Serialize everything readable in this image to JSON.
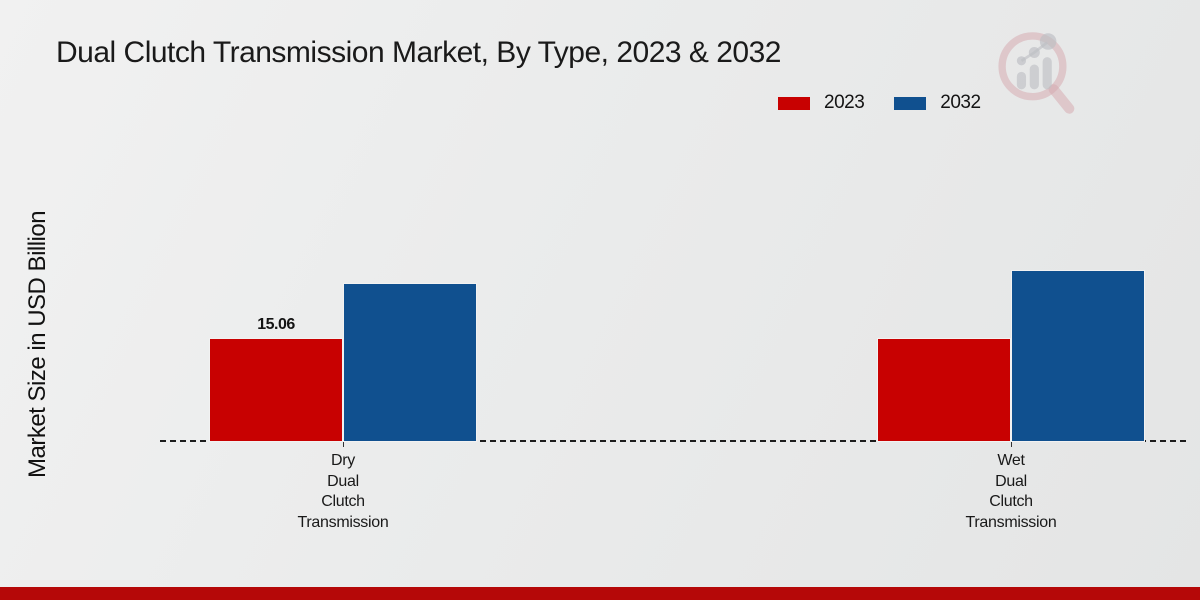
{
  "title": "Dual Clutch Transmission Market, By Type, 2023 & 2032",
  "y_axis_label": "Market Size in USD Billion",
  "legend": {
    "items": [
      {
        "label": "2023",
        "color": "#c80101"
      },
      {
        "label": "2032",
        "color": "#10508f"
      }
    ]
  },
  "watermark": {
    "icon": "magnifier-bar-chart-logo"
  },
  "footer": {
    "accent_color": "#b50808"
  },
  "chart_data": {
    "type": "bar",
    "title": "Dual Clutch Transmission Market, By Type, 2023 & 2032",
    "xlabel": "",
    "ylabel": "Market Size in USD Billion",
    "categories": [
      "Dry Dual Clutch Transmission",
      "Wet Dual Clutch Transmission"
    ],
    "category_label_lines": [
      [
        "Dry",
        "Dual",
        "Clutch",
        "Transmission"
      ],
      [
        "Wet",
        "Dual",
        "Clutch",
        "Transmission"
      ]
    ],
    "series": [
      {
        "name": "2023",
        "color": "#c80101",
        "values": [
          15.06,
          15.06
        ]
      },
      {
        "name": "2032",
        "color": "#10508f",
        "values": [
          23.0,
          24.9
        ]
      }
    ],
    "data_labels": [
      {
        "series": "2023",
        "category": "Dry Dual Clutch Transmission",
        "text": "15.06"
      }
    ],
    "ylim": [
      0,
      27
    ],
    "grid": false,
    "legend_position": "top-right",
    "baseline_style": "dashed"
  }
}
